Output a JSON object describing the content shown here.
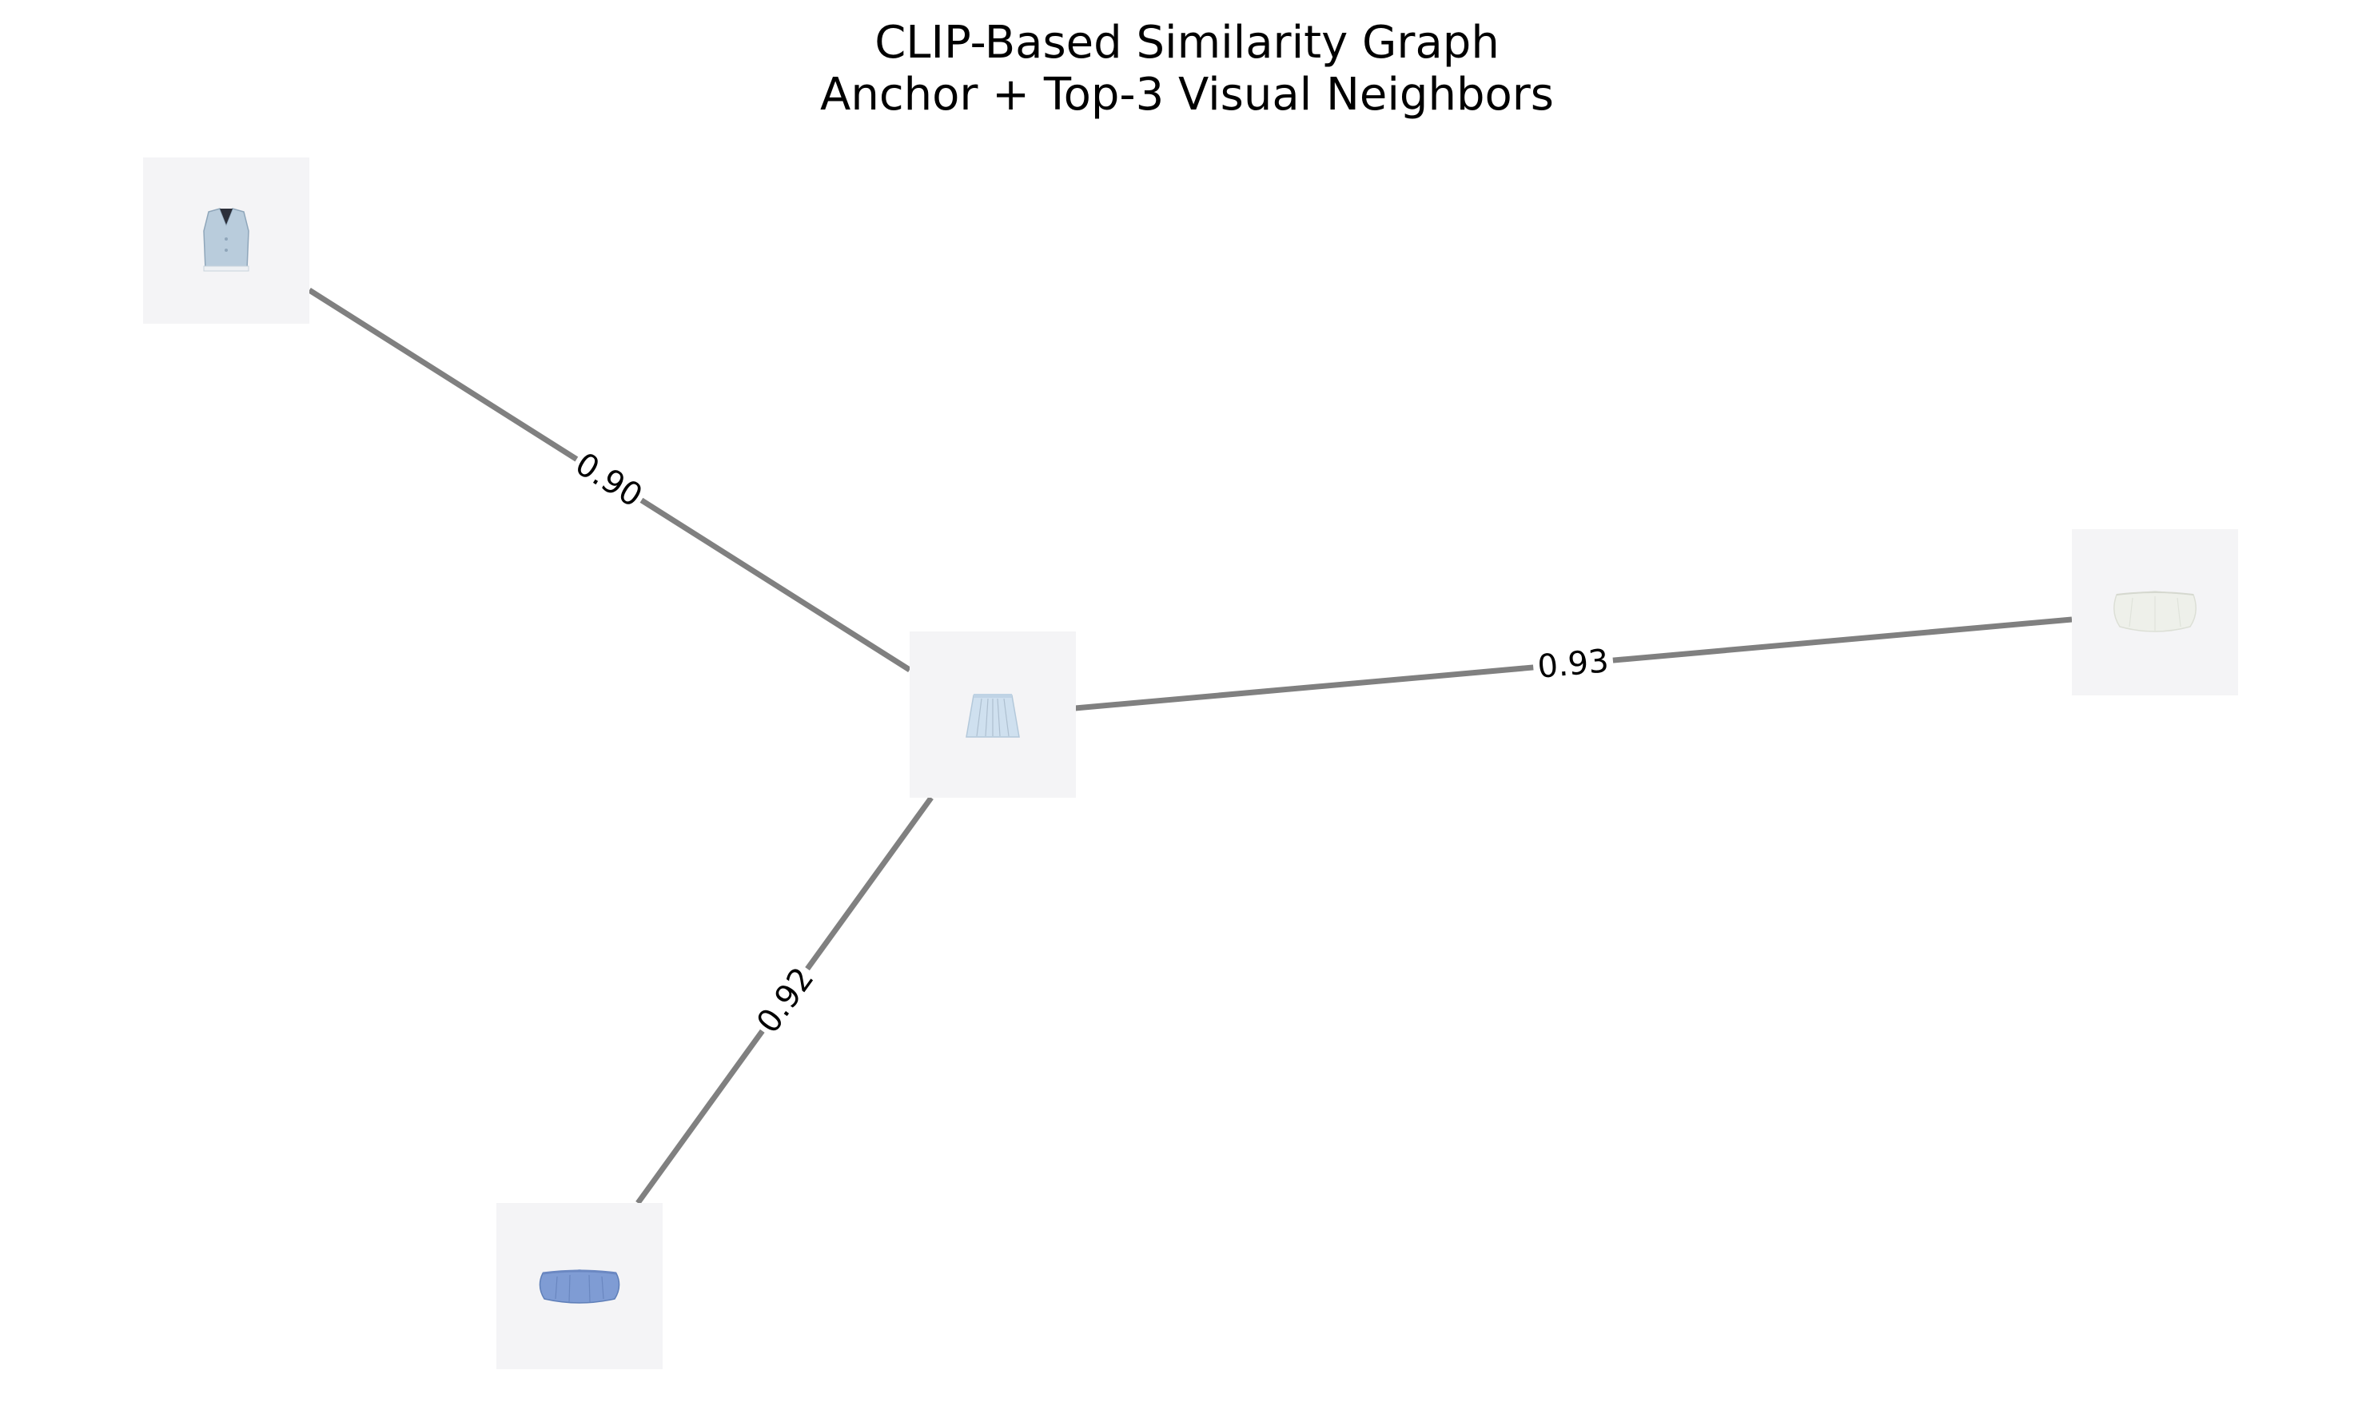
{
  "title": {
    "line1": "CLIP-Based Similarity Graph",
    "line2": "Anchor + Top-3 Visual Neighbors"
  },
  "colors": {
    "background": "#ffffff",
    "edge": "#808080",
    "node_tile": "#f4f4f6",
    "text": "#000000"
  },
  "nodes": [
    {
      "id": "anchor",
      "icon": "light-blue-pleated-skirt-icon",
      "color": "#cfe0ef"
    },
    {
      "id": "neighbor-1",
      "icon": "light-blue-vest-icon",
      "color": "#b9ccdc"
    },
    {
      "id": "neighbor-2",
      "icon": "white-bubble-skirt-icon",
      "color": "#eef0ea"
    },
    {
      "id": "neighbor-3",
      "icon": "blue-bubble-skirt-icon",
      "color": "#7f9cd4"
    }
  ],
  "edges": [
    {
      "from": "anchor",
      "to": "neighbor-1",
      "similarity": "0.90"
    },
    {
      "from": "anchor",
      "to": "neighbor-2",
      "similarity": "0.93"
    },
    {
      "from": "anchor",
      "to": "neighbor-3",
      "similarity": "0.92"
    }
  ]
}
